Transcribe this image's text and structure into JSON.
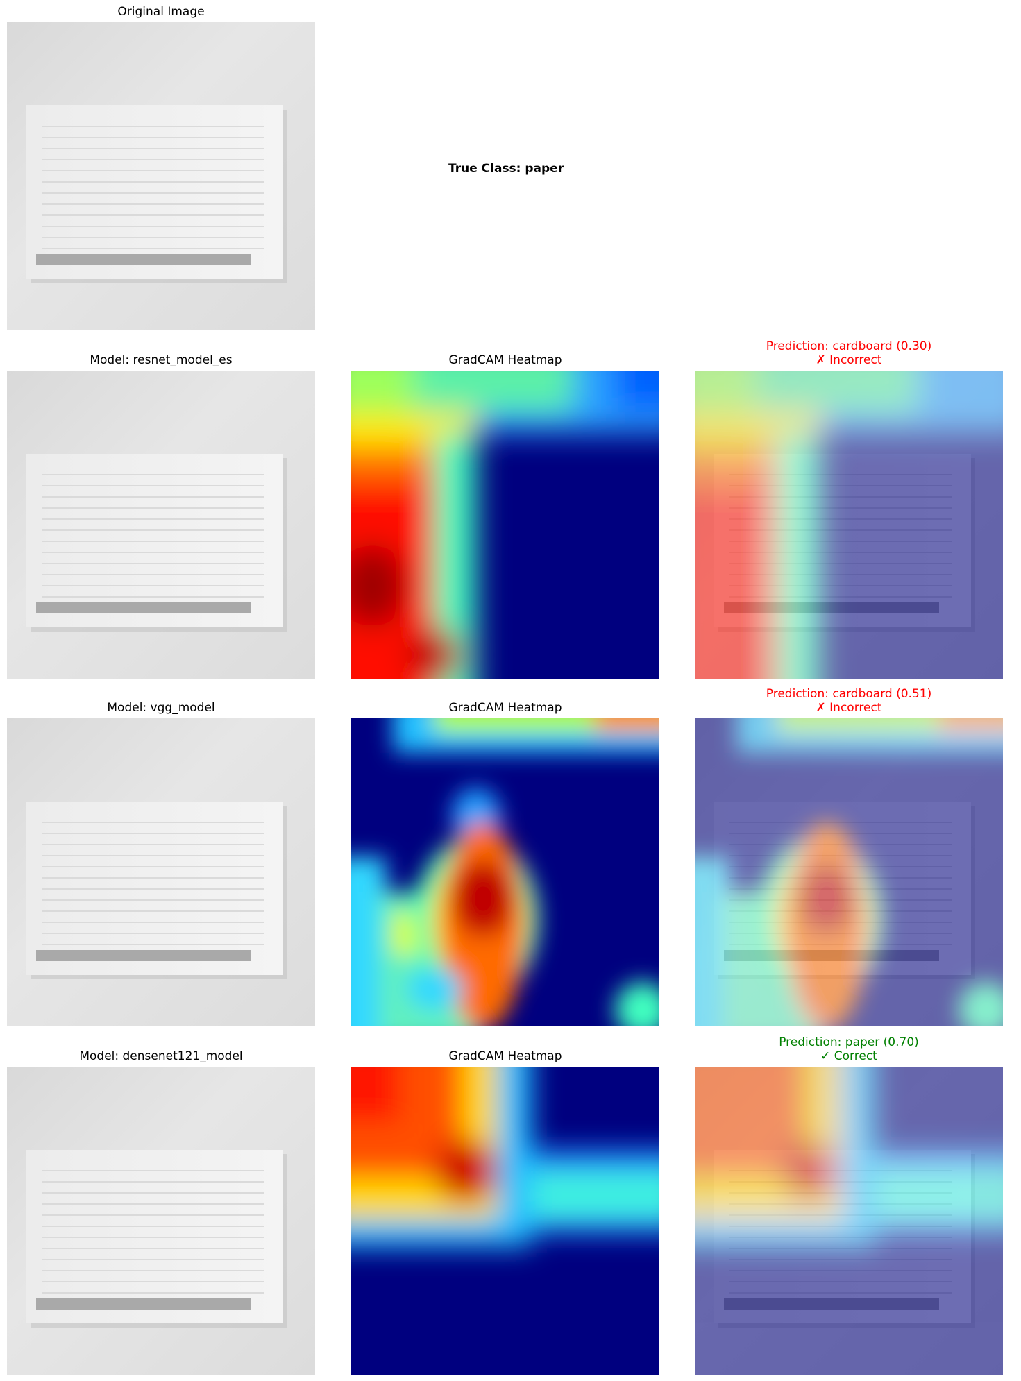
{
  "header": {
    "original_title": "Original Image",
    "true_class": "True Class: paper"
  },
  "rows": [
    {
      "model_title": "Model: resnet_model_es",
      "heatmap_title": "GradCAM Heatmap",
      "prediction": "Prediction: cardboard (0.30)",
      "verdict": "✗ Incorrect",
      "verdict_color": "#ff0000"
    },
    {
      "model_title": "Model: vgg_model",
      "heatmap_title": "GradCAM Heatmap",
      "prediction": "Prediction: cardboard (0.51)",
      "verdict": "✗ Incorrect",
      "verdict_color": "#ff0000"
    },
    {
      "model_title": "Model: densenet121_model",
      "heatmap_title": "GradCAM Heatmap",
      "prediction": "Prediction: paper (0.70)",
      "verdict": "✓ Correct",
      "verdict_color": "#008000"
    }
  ],
  "colors": {
    "incorrect": "#ff0000",
    "correct": "#008000",
    "jet_low": "#00007f",
    "jet_high": "#7f0000"
  }
}
